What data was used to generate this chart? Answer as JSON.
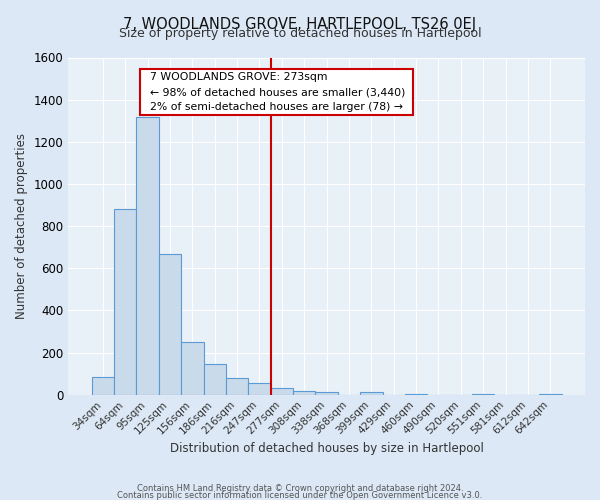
{
  "title": "7, WOODLANDS GROVE, HARTLEPOOL, TS26 0EJ",
  "subtitle": "Size of property relative to detached houses in Hartlepool",
  "xlabel": "Distribution of detached houses by size in Hartlepool",
  "ylabel": "Number of detached properties",
  "bin_labels": [
    "34sqm",
    "64sqm",
    "95sqm",
    "125sqm",
    "156sqm",
    "186sqm",
    "216sqm",
    "247sqm",
    "277sqm",
    "308sqm",
    "338sqm",
    "368sqm",
    "399sqm",
    "429sqm",
    "460sqm",
    "490sqm",
    "520sqm",
    "551sqm",
    "581sqm",
    "612sqm",
    "642sqm"
  ],
  "bar_heights": [
    85,
    880,
    1320,
    670,
    250,
    145,
    80,
    55,
    30,
    20,
    15,
    0,
    15,
    0,
    5,
    0,
    0,
    5,
    0,
    0,
    5
  ],
  "bar_color": "#c9daea",
  "bar_edgecolor": "#5b9bd5",
  "ylim": [
    0,
    1600
  ],
  "yticks": [
    0,
    200,
    400,
    600,
    800,
    1000,
    1200,
    1400,
    1600
  ],
  "vline_color": "#cc0000",
  "annotation_title": "7 WOODLANDS GROVE: 273sqm",
  "annotation_line1": "← 98% of detached houses are smaller (3,440)",
  "annotation_line2": "2% of semi-detached houses are larger (78) →",
  "annotation_box_facecolor": "#ffffff",
  "annotation_box_edgecolor": "#cc0000",
  "footer1": "Contains HM Land Registry data © Crown copyright and database right 2024.",
  "footer2": "Contains public sector information licensed under the Open Government Licence v3.0.",
  "background_color": "#dce8f5",
  "plot_background_color": "#e8f0f8",
  "grid_color": "#ffffff"
}
